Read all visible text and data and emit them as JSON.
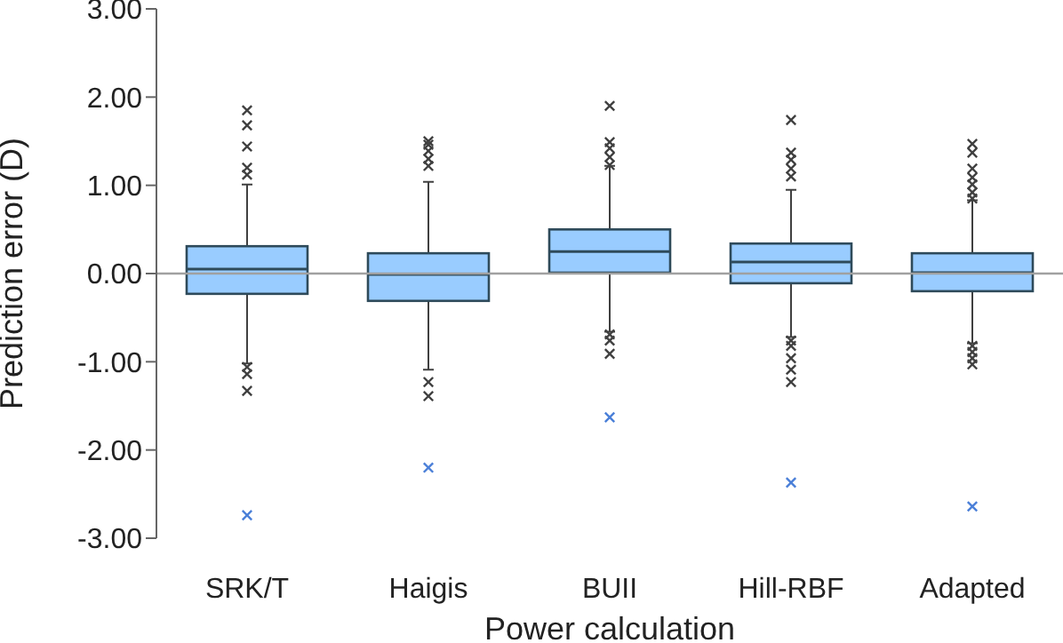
{
  "chart_data": {
    "type": "box",
    "xlabel": "Power calculation",
    "ylabel": "Prediction error (D)",
    "categories": [
      "SRK/T",
      "Haigis",
      "BUII",
      "Hill-RBF",
      "Adapted"
    ],
    "ylim": [
      -3,
      3
    ],
    "yticks": [
      {
        "value": -3,
        "label": "-3.00"
      },
      {
        "value": -2,
        "label": "-2.00"
      },
      {
        "value": -1,
        "label": "-1.00"
      },
      {
        "value": 0,
        "label": "0.00"
      },
      {
        "value": 1,
        "label": "1.00"
      },
      {
        "value": 2,
        "label": "2.00"
      },
      {
        "value": 3,
        "label": "3.00"
      }
    ],
    "grid": false,
    "legend": false,
    "marker": "cross",
    "ref_lines": [
      {
        "axis": "y",
        "value": 0,
        "color": "#a0a0a0"
      }
    ],
    "series": [
      {
        "type": "box",
        "color": "#99ccff",
        "boxes": [
          {
            "low": -1.02,
            "q1": -0.23,
            "median": 0.05,
            "q3": 0.31,
            "high": 1.01,
            "outliers": [
              1.85,
              1.68,
              1.44,
              1.2,
              1.12,
              -1.06,
              -1.14,
              -1.33
            ]
          },
          {
            "low": -1.09,
            "q1": -0.31,
            "median": -0.01,
            "q3": 0.23,
            "high": 1.04,
            "outliers": [
              1.5,
              1.46,
              1.39,
              1.3,
              1.22,
              -1.23,
              -1.39
            ]
          },
          {
            "low": -0.66,
            "q1": 0.01,
            "median": 0.25,
            "q3": 0.5,
            "high": 1.22,
            "outliers": [
              1.9,
              1.49,
              1.42,
              1.32,
              1.23,
              -0.69,
              -0.76,
              -0.91
            ]
          },
          {
            "low": -0.72,
            "q1": -0.11,
            "median": 0.13,
            "q3": 0.34,
            "high": 0.95,
            "outliers": [
              1.74,
              1.37,
              1.29,
              1.19,
              1.1,
              -0.76,
              -0.82,
              -0.96,
              -1.09,
              -1.23
            ]
          },
          {
            "low": -0.79,
            "q1": -0.2,
            "median": 0.01,
            "q3": 0.23,
            "high": 0.83,
            "outliers": [
              1.47,
              1.37,
              1.19,
              1.09,
              1.01,
              0.92,
              0.85,
              -0.82,
              -0.89,
              -0.96,
              -1.03
            ]
          }
        ]
      },
      {
        "type": "scatter",
        "color": "#4a7fd8",
        "x": [
          "SRK/T",
          "Haigis",
          "BUII",
          "Hill-RBF",
          "Adapted"
        ],
        "values": [
          -2.74,
          -2.2,
          -1.63,
          -2.37,
          -2.64
        ]
      }
    ]
  }
}
